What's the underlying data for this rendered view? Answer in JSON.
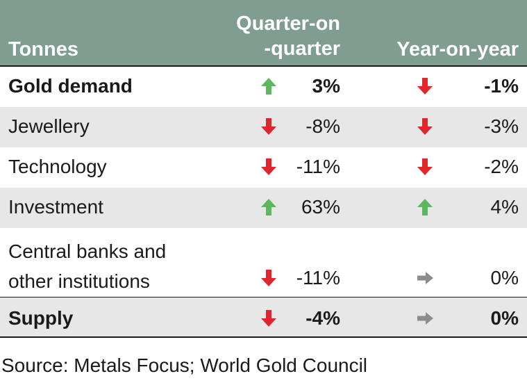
{
  "header": {
    "col_category": "Tonnes",
    "col_qoq": "Quarter-on\n-quarter",
    "col_yoy": "Year-on-year"
  },
  "rows": [
    {
      "label": "Gold demand",
      "qoq": "3%",
      "qoq_dir": "up",
      "yoy": "-1%",
      "yoy_dir": "down",
      "bold": true
    },
    {
      "label": "Jewellery",
      "qoq": "-8%",
      "qoq_dir": "down",
      "yoy": "-3%",
      "yoy_dir": "down"
    },
    {
      "label": "Technology",
      "qoq": "-11%",
      "qoq_dir": "down",
      "yoy": "-2%",
      "yoy_dir": "down"
    },
    {
      "label": "Investment",
      "qoq": "63%",
      "qoq_dir": "up",
      "yoy": "4%",
      "yoy_dir": "up"
    },
    {
      "label": "Central banks and\nother institutions",
      "qoq": "-11%",
      "qoq_dir": "down",
      "yoy": "0%",
      "yoy_dir": "flat"
    },
    {
      "label": "Supply",
      "qoq": "-4%",
      "qoq_dir": "down",
      "yoy": "0%",
      "yoy_dir": "flat",
      "bold": true
    }
  ],
  "source": "Source: Metals Focus; World Gold Council",
  "colors": {
    "header_bg": "#7f9e91",
    "shade": "#e7e7e8",
    "up": "#5cb85c",
    "down": "#e0262a",
    "flat": "#8c8c8c"
  },
  "chart_data": {
    "type": "table",
    "columns": [
      "Tonnes",
      "Quarter-on-quarter",
      "Year-on-year"
    ],
    "rows": [
      [
        "Gold demand",
        "3%",
        "-1%"
      ],
      [
        "Jewellery",
        "-8%",
        "-3%"
      ],
      [
        "Technology",
        "-11%",
        "-2%"
      ],
      [
        "Investment",
        "63%",
        "4%"
      ],
      [
        "Central banks and other institutions",
        "-11%",
        "0%"
      ],
      [
        "Supply",
        "-4%",
        "0%"
      ]
    ]
  }
}
